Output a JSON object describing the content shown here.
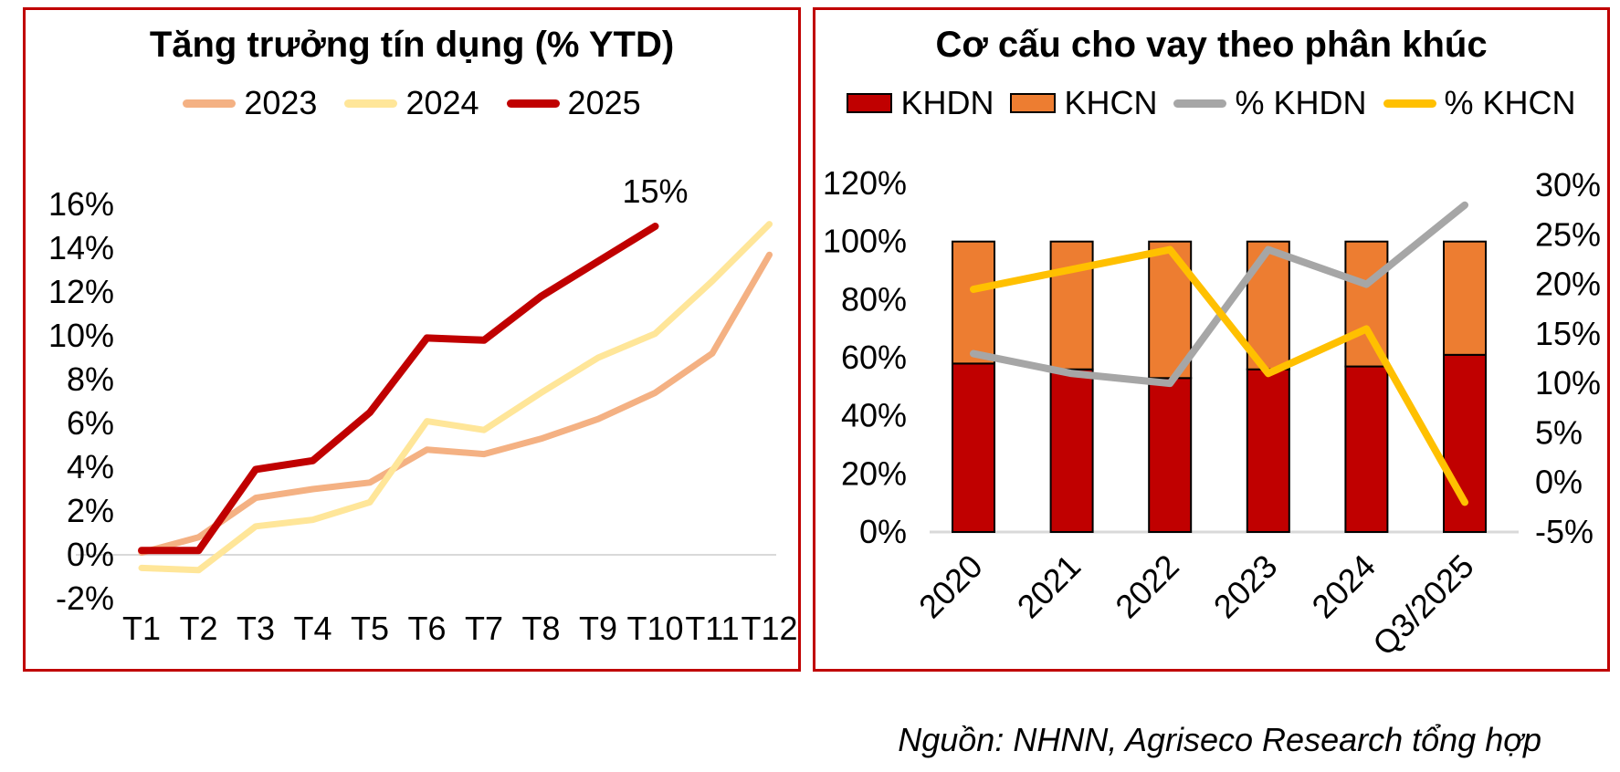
{
  "chart_data": [
    {
      "type": "line",
      "title": "Tăng trưởng tín dụng (% YTD)",
      "categories": [
        "T1",
        "T2",
        "T3",
        "T4",
        "T5",
        "T6",
        "T7",
        "T8",
        "T9",
        "T10",
        "T11",
        "T12"
      ],
      "series": [
        {
          "name": "2023",
          "color": "#F4B183",
          "values": [
            0.1,
            0.8,
            2.6,
            3.0,
            3.3,
            4.8,
            4.6,
            5.3,
            6.2,
            7.4,
            9.2,
            13.7
          ]
        },
        {
          "name": "2024",
          "color": "#FFE699",
          "values": [
            -0.6,
            -0.7,
            1.3,
            1.6,
            2.4,
            6.1,
            5.7,
            7.4,
            9.0,
            10.1,
            12.5,
            15.1
          ]
        },
        {
          "name": "2025",
          "color": "#C00000",
          "values": [
            0.2,
            0.2,
            3.9,
            4.3,
            6.5,
            9.9,
            9.8,
            11.8,
            13.4,
            15.0
          ]
        }
      ],
      "ylim": [
        -2,
        16
      ],
      "ytick_values": [
        16,
        14,
        12,
        10,
        8,
        6,
        4,
        2,
        0,
        -2
      ],
      "ytick_labels": [
        "16%",
        "14%",
        "12%",
        "10%",
        "8%",
        "6%",
        "4%",
        "2%",
        "0%",
        "-2%"
      ],
      "annotation": {
        "label": "15%",
        "series": "2025",
        "category": "T10",
        "value": 15.0
      },
      "grid": "zero-baseline-only",
      "legend_position": "top"
    },
    {
      "type": "stacked-bar-with-lines",
      "title": "Cơ cấu cho vay theo phân khúc",
      "categories": [
        "2020",
        "2021",
        "2022",
        "2023",
        "2024",
        "Q3/2025"
      ],
      "bar_series": [
        {
          "name": "KHDN",
          "color": "#C00000",
          "axis": "left",
          "values": [
            58,
            56,
            53,
            56,
            57,
            61
          ]
        },
        {
          "name": "KHCN",
          "color": "#ED7D31",
          "axis": "left",
          "values": [
            42,
            44,
            47,
            44,
            43,
            39
          ]
        }
      ],
      "line_series": [
        {
          "name": "% KHDN",
          "color": "#A6A6A6",
          "axis": "right",
          "values": [
            13,
            11,
            10,
            23.5,
            20,
            28
          ]
        },
        {
          "name": "% KHCN",
          "color": "#FFC000",
          "axis": "right",
          "values": [
            19.5,
            21.5,
            23.5,
            11,
            15.5,
            -2
          ]
        }
      ],
      "left_ylim": [
        0,
        120
      ],
      "left_ytick_values": [
        120,
        100,
        80,
        60,
        40,
        20,
        0
      ],
      "left_ytick_labels": [
        "120%",
        "100%",
        "80%",
        "60%",
        "40%",
        "20%",
        "0%"
      ],
      "right_ylim": [
        -5,
        30
      ],
      "right_ytick_values": [
        30,
        25,
        20,
        15,
        10,
        5,
        0,
        -5
      ],
      "right_ytick_labels": [
        "30%",
        "25%",
        "20%",
        "15%",
        "10%",
        "5%",
        "0%",
        "-5%"
      ],
      "legend_position": "top"
    }
  ],
  "source_note": "Nguồn: NHNN, Agriseco Research tổng hợp",
  "colors": {
    "panel_border": "#C00000",
    "gridline": "#D9D9D9",
    "baseline": "#D9D9D9",
    "bar_outline": "#000000",
    "text": "#000000",
    "background": "#FFFFFF"
  }
}
